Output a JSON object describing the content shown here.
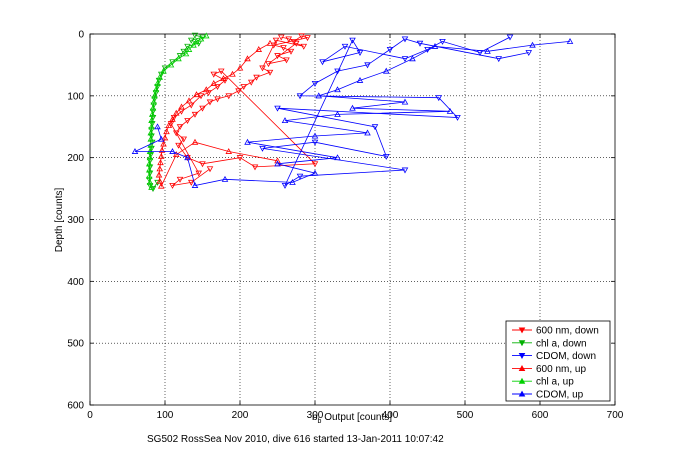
{
  "chart_data": {
    "type": "line",
    "xlabel_main": "b",
    "xlabel_sub": "b",
    "xlabel_rest": " Output [counts]",
    "ylabel": "Depth [counts]",
    "footer": "SG502 RossSea Nov 2010, dive 616 started 13-Jan-2011 10:07:42",
    "xlim": [
      0,
      700
    ],
    "ylim": [
      0,
      600
    ],
    "y_reversed": true,
    "grid": true,
    "legend_position": "bottom-right",
    "xticks": [
      "0",
      "100",
      "200",
      "300",
      "400",
      "500",
      "600",
      "700"
    ],
    "yticks": [
      "0",
      "100",
      "200",
      "300",
      "400",
      "500",
      "600"
    ],
    "series": [
      {
        "name": "600 nm, down",
        "color": "#ff0000",
        "marker": "triangle-down",
        "points": [
          [
            255,
            5
          ],
          [
            265,
            8
          ],
          [
            272,
            12
          ],
          [
            282,
            3
          ],
          [
            290,
            6
          ],
          [
            245,
            18
          ],
          [
            258,
            22
          ],
          [
            268,
            28
          ],
          [
            250,
            35
          ],
          [
            262,
            42
          ],
          [
            238,
            48
          ],
          [
            275,
            15
          ],
          [
            285,
            20
          ],
          [
            248,
            10
          ],
          [
            230,
            55
          ],
          [
            240,
            62
          ],
          [
            222,
            70
          ],
          [
            215,
            78
          ],
          [
            205,
            85
          ],
          [
            198,
            92
          ],
          [
            185,
            100
          ],
          [
            170,
            105
          ],
          [
            160,
            110
          ],
          [
            150,
            120
          ],
          [
            140,
            130
          ],
          [
            130,
            140
          ],
          [
            120,
            150
          ],
          [
            115,
            160
          ],
          [
            125,
            170
          ],
          [
            118,
            180
          ],
          [
            130,
            200
          ],
          [
            150,
            210
          ],
          [
            200,
            200
          ],
          [
            220,
            215
          ],
          [
            300,
            210
          ],
          [
            175,
            60
          ],
          [
            165,
            65
          ],
          [
            180,
            75
          ],
          [
            170,
            85
          ],
          [
            158,
            95
          ],
          [
            148,
            100
          ],
          [
            135,
            115
          ],
          [
            122,
            125
          ],
          [
            112,
            135
          ],
          [
            108,
            145
          ],
          [
            145,
            225
          ],
          [
            120,
            235
          ],
          [
            110,
            245
          ],
          [
            135,
            240
          ],
          [
            160,
            218
          ]
        ]
      },
      {
        "name": "chl a, down",
        "color": "#00b000",
        "marker": "triangle-down",
        "points": [
          [
            140,
            2
          ],
          [
            150,
            5
          ],
          [
            135,
            10
          ],
          [
            145,
            15
          ],
          [
            130,
            20
          ],
          [
            125,
            28
          ],
          [
            120,
            35
          ],
          [
            110,
            45
          ],
          [
            100,
            55
          ],
          [
            95,
            65
          ],
          [
            92,
            75
          ],
          [
            90,
            85
          ],
          [
            88,
            95
          ],
          [
            86,
            105
          ],
          [
            85,
            115
          ],
          [
            84,
            125
          ],
          [
            84,
            135
          ],
          [
            83,
            145
          ],
          [
            82,
            155
          ],
          [
            82,
            165
          ],
          [
            83,
            175
          ],
          [
            82,
            185
          ],
          [
            81,
            195
          ],
          [
            80,
            205
          ],
          [
            80,
            215
          ],
          [
            80,
            225
          ],
          [
            79,
            235
          ],
          [
            80,
            245
          ],
          [
            84,
            250
          ],
          [
            90,
            240
          ]
        ]
      },
      {
        "name": "CDOM, down",
        "color": "#0000ff",
        "marker": "triangle-down",
        "points": [
          [
            585,
            30
          ],
          [
            545,
            40
          ],
          [
            440,
            15
          ],
          [
            420,
            8
          ],
          [
            400,
            25
          ],
          [
            370,
            50
          ],
          [
            330,
            60
          ],
          [
            300,
            80
          ],
          [
            280,
            100
          ],
          [
            465,
            103
          ],
          [
            490,
            135
          ],
          [
            250,
            120
          ],
          [
            380,
            150
          ],
          [
            395,
            198
          ],
          [
            300,
            175
          ],
          [
            230,
            185
          ],
          [
            420,
            220
          ],
          [
            280,
            230
          ],
          [
            260,
            245
          ],
          [
            350,
            10
          ],
          [
            360,
            30
          ],
          [
            310,
            45
          ],
          [
            340,
            20
          ],
          [
            420,
            40
          ],
          [
            450,
            25
          ],
          [
            470,
            12
          ],
          [
            520,
            30
          ],
          [
            560,
            5
          ]
        ]
      },
      {
        "name": "600 nm, up",
        "color": "#ff0000",
        "marker": "triangle-up",
        "points": [
          [
            240,
            15
          ],
          [
            225,
            25
          ],
          [
            210,
            40
          ],
          [
            200,
            55
          ],
          [
            190,
            65
          ],
          [
            178,
            72
          ],
          [
            165,
            80
          ],
          [
            155,
            90
          ],
          [
            142,
            98
          ],
          [
            132,
            108
          ],
          [
            122,
            118
          ],
          [
            115,
            128
          ],
          [
            110,
            138
          ],
          [
            105,
            148
          ],
          [
            102,
            158
          ],
          [
            100,
            168
          ],
          [
            98,
            178
          ],
          [
            96,
            188
          ],
          [
            95,
            198
          ],
          [
            94,
            208
          ],
          [
            93,
            218
          ],
          [
            92,
            228
          ],
          [
            93,
            238
          ],
          [
            95,
            246
          ],
          [
            115,
            195
          ],
          [
            140,
            175
          ],
          [
            185,
            190
          ],
          [
            250,
            205
          ]
        ]
      },
      {
        "name": "chl a, up",
        "color": "#00d000",
        "marker": "triangle-up",
        "points": [
          [
            155,
            3
          ],
          [
            148,
            8
          ],
          [
            142,
            12
          ],
          [
            138,
            18
          ],
          [
            132,
            25
          ],
          [
            128,
            32
          ],
          [
            118,
            40
          ],
          [
            108,
            50
          ],
          [
            98,
            60
          ],
          [
            93,
            70
          ],
          [
            90,
            80
          ],
          [
            88,
            90
          ],
          [
            86,
            100
          ],
          [
            85,
            110
          ],
          [
            84,
            120
          ],
          [
            83,
            130
          ],
          [
            82,
            140
          ],
          [
            82,
            150
          ],
          [
            81,
            160
          ],
          [
            81,
            170
          ],
          [
            81,
            180
          ],
          [
            80,
            190
          ],
          [
            80,
            200
          ],
          [
            79,
            210
          ],
          [
            79,
            220
          ],
          [
            79,
            230
          ],
          [
            80,
            240
          ],
          [
            82,
            248
          ]
        ]
      },
      {
        "name": "CDOM, up",
        "color": "#0000ff",
        "marker": "triangle-up",
        "points": [
          [
            640,
            12
          ],
          [
            590,
            18
          ],
          [
            530,
            28
          ],
          [
            460,
            20
          ],
          [
            430,
            40
          ],
          [
            395,
            60
          ],
          [
            360,
            75
          ],
          [
            330,
            90
          ],
          [
            305,
            100
          ],
          [
            420,
            110
          ],
          [
            350,
            120
          ],
          [
            480,
            125
          ],
          [
            330,
            130
          ],
          [
            260,
            140
          ],
          [
            370,
            160
          ],
          [
            300,
            165
          ],
          [
            210,
            175
          ],
          [
            330,
            200
          ],
          [
            250,
            210
          ],
          [
            300,
            225
          ],
          [
            270,
            240
          ],
          [
            180,
            235
          ],
          [
            140,
            245
          ],
          [
            130,
            200
          ],
          [
            110,
            190
          ],
          [
            60,
            190
          ],
          [
            95,
            170
          ],
          [
            90,
            150
          ]
        ]
      }
    ]
  }
}
